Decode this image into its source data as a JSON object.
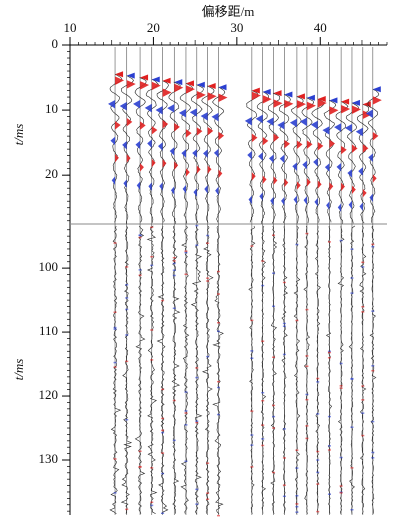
{
  "chart_data": {
    "type": "seismic",
    "xlabel": "偏移距/m",
    "xlim": [
      10,
      48
    ],
    "xticks": [
      10,
      20,
      30,
      40
    ],
    "x": [
      15.4,
      16.8,
      18.4,
      19.8,
      21.1,
      22.5,
      23.9,
      25.2,
      26.5,
      27.8,
      31.8,
      33.1,
      34.4,
      35.7,
      37.2,
      38.4,
      39.7,
      41.1,
      42.5,
      43.8,
      45.1,
      46.3
    ],
    "first_break_ms": [
      4.5,
      4.7,
      5.0,
      5.3,
      5.5,
      5.7,
      5.9,
      6.1,
      6.3,
      6.5,
      7.0,
      7.2,
      7.4,
      7.6,
      7.9,
      8.1,
      8.3,
      8.5,
      8.7,
      8.9,
      9.1,
      6.8
    ],
    "panels": [
      {
        "ylabel": "t/ms",
        "ylim": [
          0,
          27.5
        ],
        "yticks": [
          0,
          10,
          20
        ]
      },
      {
        "ylabel": "t/ms",
        "ylim": [
          93.1,
          138.6
        ],
        "yticks": [
          100,
          110,
          120,
          130
        ]
      }
    ]
  }
}
